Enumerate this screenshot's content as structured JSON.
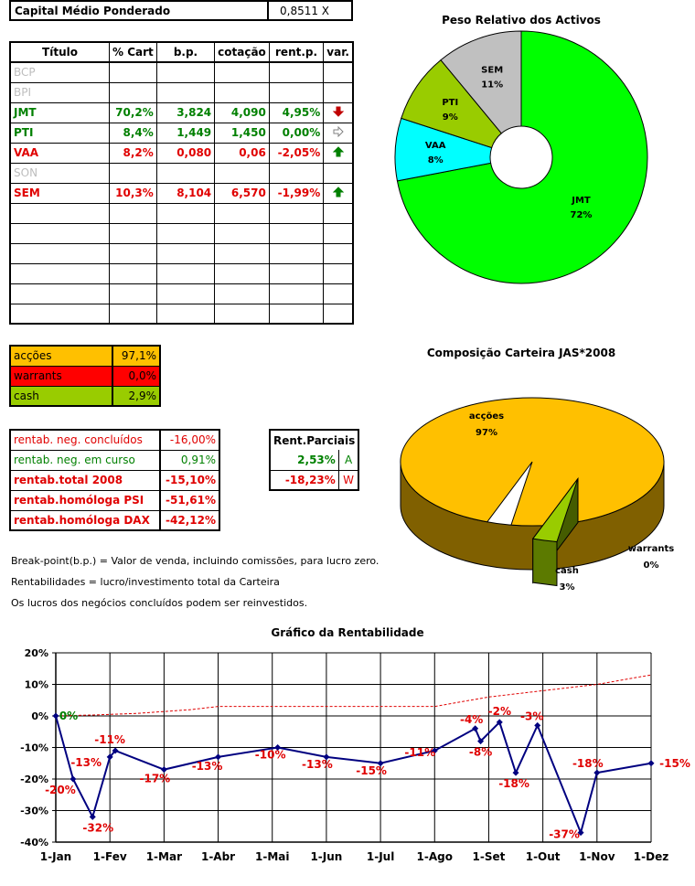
{
  "capital": {
    "label": "Capital Médio Ponderado",
    "value": "0,8511 X"
  },
  "main_table": {
    "headers": [
      "Título",
      "% Cart",
      "b.p.",
      "cotação",
      "rent.p.",
      "var."
    ],
    "rows": [
      {
        "titulo": "BCP",
        "cart": "",
        "bp": "",
        "cot": "",
        "rent": "",
        "var": "",
        "style": "gray"
      },
      {
        "titulo": "BPI",
        "cart": "",
        "bp": "",
        "cot": "",
        "rent": "",
        "var": "",
        "style": "gray"
      },
      {
        "titulo": "JMT",
        "cart": "70,2%",
        "bp": "3,824",
        "cot": "4,090",
        "rent": "4,95%",
        "var": "down",
        "style": "green"
      },
      {
        "titulo": "PTI",
        "cart": "8,4%",
        "bp": "1,449",
        "cot": "1,450",
        "rent": "0,00%",
        "var": "right",
        "style": "green"
      },
      {
        "titulo": "VAA",
        "cart": "8,2%",
        "bp": "0,080",
        "cot": "0,06",
        "rent": "-2,05%",
        "var": "up",
        "style": "red"
      },
      {
        "titulo": "SON",
        "cart": "",
        "bp": "",
        "cot": "",
        "rent": "",
        "var": "",
        "style": "gray"
      },
      {
        "titulo": "SEM",
        "cart": "10,3%",
        "bp": "8,104",
        "cot": "6,570",
        "rent": "-1,99%",
        "var": "up",
        "style": "red"
      },
      {
        "titulo": "",
        "cart": "",
        "bp": "",
        "cot": "",
        "rent": "",
        "var": "",
        "style": "empty"
      },
      {
        "titulo": "",
        "cart": "",
        "bp": "",
        "cot": "",
        "rent": "",
        "var": "",
        "style": "empty"
      },
      {
        "titulo": "",
        "cart": "",
        "bp": "",
        "cot": "",
        "rent": "",
        "var": "",
        "style": "empty"
      },
      {
        "titulo": "",
        "cart": "",
        "bp": "",
        "cot": "",
        "rent": "",
        "var": "",
        "style": "empty"
      },
      {
        "titulo": "",
        "cart": "",
        "bp": "",
        "cot": "",
        "rent": "",
        "var": "",
        "style": "empty"
      },
      {
        "titulo": "",
        "cart": "",
        "bp": "",
        "cot": "",
        "rent": "",
        "var": "",
        "style": "empty"
      }
    ]
  },
  "composition": [
    {
      "label": "acções",
      "value": "97,1%",
      "color": "#ffc000"
    },
    {
      "label": "warrants",
      "value": "0,0%",
      "color": "#ff0000"
    },
    {
      "label": "cash",
      "value": "2,9%",
      "color": "#99cc00"
    }
  ],
  "rentab": [
    {
      "label": "rentab. neg. concluídos",
      "value": "-16,00%",
      "style": "normal"
    },
    {
      "label": "rentab. neg. em curso",
      "value": "0,91%",
      "style": "green"
    },
    {
      "label": "rentab.total 2008",
      "value": "-15,10%",
      "style": "bold"
    },
    {
      "label": "rentab.homóloga PSI",
      "value": "-51,61%",
      "style": "bold"
    },
    {
      "label": "rentab.homóloga DAX",
      "value": "-42,12%",
      "style": "bold"
    }
  ],
  "parciais": {
    "header": "Rent.Parciais",
    "rows": [
      {
        "value": "2,53%",
        "flag": "A",
        "color": "#008000"
      },
      {
        "value": "-18,23%",
        "flag": "W",
        "color": "#e00000"
      }
    ]
  },
  "notes": [
    "Break-point(b.p.) = Valor de venda, incluindo comissões, para lucro zero.",
    "Rentabilidades = lucro/investimento total da Carteira",
    "Os lucros dos negócios concluídos podem ser reinvestidos."
  ],
  "colors": {
    "up_arrow": "#008000",
    "down_arrow": "#c00000",
    "right_arrow": "#808080"
  },
  "chart_data": [
    {
      "type": "pie",
      "variant": "doughnut",
      "title": "Peso Relativo dos Activos",
      "slices": [
        {
          "name": "JMT",
          "value": 72,
          "label": "72%",
          "color": "#00ff00"
        },
        {
          "name": "VAA",
          "value": 8,
          "label": "8%",
          "color": "#00ffff"
        },
        {
          "name": "PTI",
          "value": 9,
          "label": "9%",
          "color": "#99cc00"
        },
        {
          "name": "SEM",
          "value": 11,
          "label": "11%",
          "color": "#c0c0c0"
        }
      ]
    },
    {
      "type": "pie",
      "variant": "3d",
      "title": "Composição Carteira JAS*2008",
      "slices": [
        {
          "name": "acções",
          "value": 97,
          "label": "97%",
          "color": "#ffc000"
        },
        {
          "name": "warrants",
          "value": 0,
          "label": "0%",
          "color": "#ff0000"
        },
        {
          "name": "cash",
          "value": 3,
          "label": "3%",
          "color": "#99cc00"
        }
      ]
    },
    {
      "type": "line",
      "title": "Gráfico da Rentabilidade",
      "xlabel": "",
      "ylabel": "",
      "x_ticks": [
        "1-Jan",
        "1-Fev",
        "1-Mar",
        "1-Abr",
        "1-Mai",
        "1-Jun",
        "1-Jul",
        "1-Ago",
        "1-Set",
        "1-Out",
        "1-Nov",
        "1-Dez"
      ],
      "y_ticks": [
        "20%",
        "10%",
        "0%",
        "-10%",
        "-20%",
        "-30%",
        "-40%"
      ],
      "ylim": [
        -40,
        20
      ],
      "grid": true,
      "series": [
        {
          "style": "solid-markers",
          "color": "#000080",
          "points": [
            {
              "x": 0.0,
              "y": 0
            },
            {
              "x": 0.32,
              "y": -20
            },
            {
              "x": 0.68,
              "y": -32
            },
            {
              "x": 1.0,
              "y": -13
            },
            {
              "x": 1.1,
              "y": -11
            },
            {
              "x": 2.0,
              "y": -17
            },
            {
              "x": 3.0,
              "y": -13
            },
            {
              "x": 4.1,
              "y": -10
            },
            {
              "x": 5.0,
              "y": -13
            },
            {
              "x": 6.0,
              "y": -15
            },
            {
              "x": 7.0,
              "y": -11
            },
            {
              "x": 7.75,
              "y": -4
            },
            {
              "x": 7.85,
              "y": -8
            },
            {
              "x": 8.2,
              "y": -2
            },
            {
              "x": 8.5,
              "y": -18
            },
            {
              "x": 8.9,
              "y": -3
            },
            {
              "x": 9.7,
              "y": -37
            },
            {
              "x": 10.0,
              "y": -18
            },
            {
              "x": 11.0,
              "y": -15
            }
          ],
          "labels": [
            {
              "text": "0%",
              "x": 0.0,
              "y": 0,
              "color": "#008000"
            },
            {
              "text": "-20%",
              "x": 0.32,
              "y": -20,
              "color": "#e00000"
            },
            {
              "text": "-32%",
              "x": 0.68,
              "y": -32,
              "color": "#e00000"
            },
            {
              "text": "-13%",
              "x": 1.0,
              "y": -13,
              "color": "#e00000"
            },
            {
              "text": "-11%",
              "x": 1.1,
              "y": -11,
              "color": "#e00000"
            },
            {
              "text": "-17%",
              "x": 2.0,
              "y": -17,
              "color": "#e00000"
            },
            {
              "text": "-13%",
              "x": 3.0,
              "y": -13,
              "color": "#e00000"
            },
            {
              "text": "-10%",
              "x": 4.1,
              "y": -10,
              "color": "#e00000"
            },
            {
              "text": "-13%",
              "x": 5.0,
              "y": -13,
              "color": "#e00000"
            },
            {
              "text": "-15%",
              "x": 6.0,
              "y": -15,
              "color": "#e00000"
            },
            {
              "text": "-11%",
              "x": 7.0,
              "y": -11,
              "color": "#e00000"
            },
            {
              "text": "-4%",
              "x": 7.75,
              "y": -4,
              "color": "#e00000"
            },
            {
              "text": "-8%",
              "x": 7.85,
              "y": -8,
              "color": "#e00000"
            },
            {
              "text": "-2%",
              "x": 8.2,
              "y": -2,
              "color": "#e00000"
            },
            {
              "text": "-18%",
              "x": 8.5,
              "y": -18,
              "color": "#e00000"
            },
            {
              "text": "-3%",
              "x": 8.9,
              "y": -3,
              "color": "#e00000"
            },
            {
              "text": "-37%",
              "x": 9.7,
              "y": -37,
              "color": "#e00000"
            },
            {
              "text": "-18%",
              "x": 10.0,
              "y": -18,
              "color": "#e00000"
            },
            {
              "text": "-15%",
              "x": 11.0,
              "y": -15,
              "color": "#e00000"
            }
          ]
        },
        {
          "style": "dashed",
          "color": "#e00000",
          "points": [
            {
              "x": 0,
              "y": 0
            },
            {
              "x": 0.7,
              "y": 0.3
            },
            {
              "x": 1.5,
              "y": 0.8
            },
            {
              "x": 2.5,
              "y": 2
            },
            {
              "x": 3.0,
              "y": 3
            },
            {
              "x": 7.0,
              "y": 3
            },
            {
              "x": 8.0,
              "y": 6
            },
            {
              "x": 9.0,
              "y": 8
            },
            {
              "x": 10.0,
              "y": 10
            },
            {
              "x": 11.0,
              "y": 13
            }
          ]
        }
      ]
    }
  ]
}
